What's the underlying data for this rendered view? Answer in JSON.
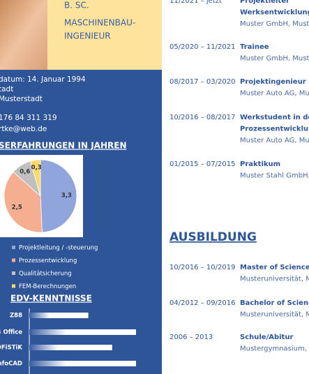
{
  "profile": {
    "degree": "B. SC.",
    "title": [
      "MASCHINENBAU-",
      "INGENIEUR"
    ],
    "details": [
      "datum: 14. Januar 1994",
      "tadt",
      "Musterstadt",
      "176 84 311 319",
      "rtke@web.de"
    ]
  },
  "chart_data": [
    {
      "type": "pie",
      "title": "SERFAHRUNGEN IN JAHREN",
      "categories": [
        "Projektleitung / -steuerung",
        "Prozessentwicklung",
        "Qualitätsicherung",
        "FEM-Berechnungen"
      ],
      "values": [
        3.3,
        2.5,
        0.6,
        0.3
      ],
      "value_labels": [
        "3,3",
        "2,5",
        "0,6",
        "0,3"
      ],
      "colors": [
        "#8fa5dc",
        "#f5ae90",
        "#c0c0c0",
        "#fdd86a"
      ]
    },
    {
      "type": "bar",
      "orientation": "horizontal",
      "title": "EDV-KENNTNISSE",
      "categories": [
        "Z88",
        "S Office",
        "OFiSTiK",
        "nfoCAD"
      ],
      "values": [
        47,
        85,
        66,
        85
      ],
      "xlim": [
        0,
        100
      ],
      "color": "#ffffff"
    }
  ],
  "experience": [
    {
      "date": "11/2021 – jetzt",
      "title": [
        "Projektleiter",
        "Werksentwicklung"
      ],
      "place": "Muster GmbH, Muste"
    },
    {
      "date": "05/2020 – 11/2021",
      "title": [
        "Trainee"
      ],
      "place": "Muster GmbH, Must"
    },
    {
      "date": "08/2017 – 03/2020",
      "title": [
        "Projektingenieur"
      ],
      "place": "Muster Auto AG, Mu"
    },
    {
      "date": "10/2016 – 08/2017",
      "title": [
        "Werkstudent in der",
        "Prozessentwicklung"
      ],
      "place": "Muster Auto AG, Mus"
    },
    {
      "date": "01/2015 – 07/2015",
      "title": [
        "Praktikum"
      ],
      "place": "Muster Stahl GmbH,"
    }
  ],
  "education_heading": "AUSBILDUNG",
  "education": [
    {
      "date": "10/2016 – 10/2019",
      "title": [
        "Master of Science"
      ],
      "place": "Musteruniversität, M"
    },
    {
      "date": "04/2012 – 09/2016",
      "title": [
        "Bachelor of Science"
      ],
      "place": "Musteruniversität, M"
    },
    {
      "date": "2006 – 2013",
      "title": [
        "Schule/Abitur"
      ],
      "place": "Mustergymnasium, M"
    }
  ]
}
